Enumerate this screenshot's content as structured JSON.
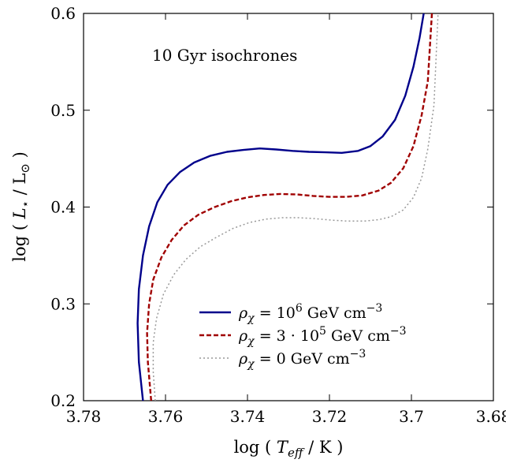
{
  "chart_data": {
    "type": "line",
    "title": "",
    "annotation": "10 Gyr isochrones",
    "xlabel_parts": {
      "pre": "log ( ",
      "var": "T",
      "sub": "eff",
      "post": " / K )"
    },
    "ylabel_parts": {
      "pre": "log ( ",
      "var": "L",
      "sub": "⋆",
      "mid": " / L",
      "sub2": "⊙",
      "post": " )"
    },
    "xlim": [
      3.78,
      3.68
    ],
    "ylim": [
      0.2,
      0.6
    ],
    "xticks": [
      3.78,
      3.76,
      3.74,
      3.72,
      3.7,
      3.68
    ],
    "xtick_labels": [
      "3.78",
      "3.76",
      "3.74",
      "3.72",
      "3.7",
      "3.68"
    ],
    "yticks": [
      0.2,
      0.3,
      0.4,
      0.5,
      0.6
    ],
    "ytick_labels": [
      "0.2",
      "0.3",
      "0.4",
      "0.5",
      "0.6"
    ],
    "legend_position": "bottom-right",
    "series": [
      {
        "name": "ρχ = 10^6 GeV cm^-3",
        "label_parts": {
          "rho": "ρ",
          "chi": "χ",
          "eq": " = 10",
          "exp": "6",
          "unit": " GeV cm",
          "unitexp": "−3"
        },
        "color": "#00008b",
        "style": "solid",
        "x": [
          3.7655,
          3.7665,
          3.7668,
          3.7665,
          3.7655,
          3.764,
          3.762,
          3.7595,
          3.7565,
          3.753,
          3.749,
          3.745,
          3.741,
          3.737,
          3.733,
          3.729,
          3.725,
          3.721,
          3.717,
          3.713,
          3.71,
          3.707,
          3.704,
          3.7015,
          3.6995,
          3.698,
          3.697
        ],
        "y": [
          0.2,
          0.24,
          0.28,
          0.315,
          0.35,
          0.38,
          0.405,
          0.423,
          0.436,
          0.446,
          0.453,
          0.457,
          0.459,
          0.4605,
          0.4595,
          0.458,
          0.457,
          0.4565,
          0.456,
          0.458,
          0.463,
          0.473,
          0.49,
          0.515,
          0.545,
          0.575,
          0.6
        ]
      },
      {
        "name": "ρχ = 3·10^5 GeV cm^-3",
        "label_parts": {
          "rho": "ρ",
          "chi": "χ",
          "eq": " = 3 · 10",
          "exp": "5",
          "unit": " GeV cm",
          "unitexp": "−3"
        },
        "color": "#a00000",
        "style": "dashed",
        "x": [
          3.7635,
          3.7643,
          3.7645,
          3.764,
          3.763,
          3.761,
          3.7585,
          3.7555,
          3.752,
          3.748,
          3.744,
          3.74,
          3.736,
          3.732,
          3.728,
          3.724,
          3.72,
          3.716,
          3.712,
          3.708,
          3.705,
          3.702,
          3.6995,
          3.6975,
          3.696,
          3.695
        ],
        "y": [
          0.2,
          0.24,
          0.27,
          0.3,
          0.325,
          0.348,
          0.366,
          0.381,
          0.392,
          0.4,
          0.406,
          0.41,
          0.4125,
          0.4135,
          0.413,
          0.4115,
          0.4105,
          0.4105,
          0.412,
          0.417,
          0.425,
          0.44,
          0.463,
          0.495,
          0.53,
          0.6
        ]
      },
      {
        "name": "ρχ = 0 GeV cm^-3",
        "label_parts": {
          "rho": "ρ",
          "chi": "χ",
          "eq": " = 0 GeV cm",
          "exp": "",
          "unit": "",
          "unitexp": "−3"
        },
        "color": "#999999",
        "style": "dotted",
        "x": [
          3.7625,
          3.763,
          3.763,
          3.7622,
          3.7605,
          3.758,
          3.755,
          3.7515,
          3.7475,
          3.7435,
          3.7395,
          3.7355,
          3.7315,
          3.7275,
          3.7235,
          3.7195,
          3.7155,
          3.7115,
          3.708,
          3.705,
          3.702,
          3.6995,
          3.6975,
          3.696,
          3.6945,
          3.6935
        ],
        "y": [
          0.2,
          0.23,
          0.26,
          0.285,
          0.31,
          0.33,
          0.346,
          0.359,
          0.369,
          0.378,
          0.384,
          0.3875,
          0.389,
          0.389,
          0.388,
          0.3865,
          0.3855,
          0.3855,
          0.387,
          0.39,
          0.397,
          0.41,
          0.43,
          0.46,
          0.505,
          0.6
        ]
      }
    ]
  }
}
